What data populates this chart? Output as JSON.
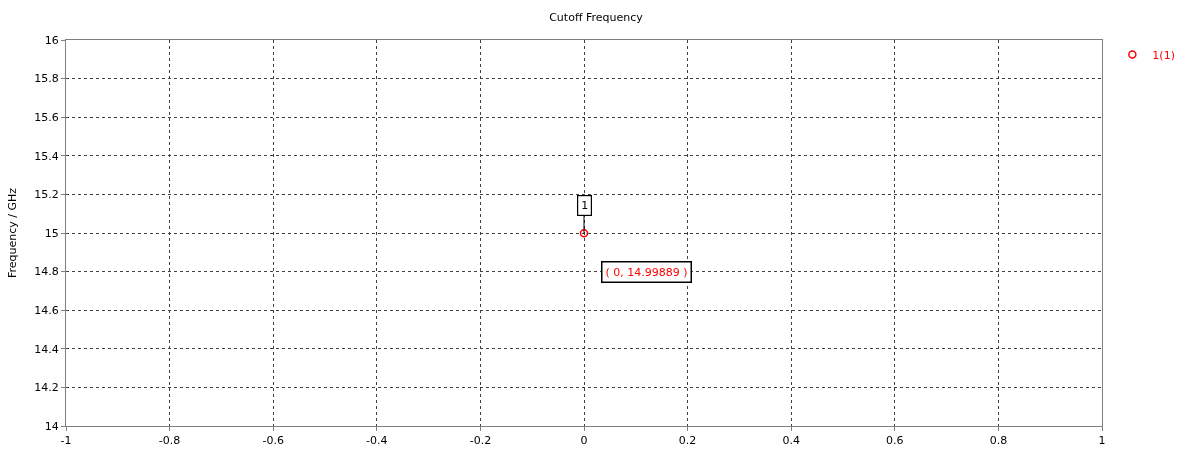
{
  "chart_data": {
    "type": "scatter",
    "title": "Cutoff Frequency",
    "ylabel": "Frequency / GHz",
    "series": [
      {
        "name": "1(1)",
        "color": "#ff0000",
        "x": [
          0
        ],
        "values": [
          14.99889
        ]
      }
    ],
    "xlim": [
      -1,
      1
    ],
    "xticks": [
      -1,
      -0.8,
      -0.6,
      -0.4,
      -0.2,
      0,
      0.2,
      0.4,
      0.6,
      0.8,
      1
    ],
    "ylim": [
      14,
      16
    ],
    "yticks": [
      14,
      14.2,
      14.4,
      14.6,
      14.8,
      15,
      15.2,
      15.4,
      15.6,
      15.8,
      16
    ],
    "grid": true,
    "legend": "top right",
    "marker": "circle",
    "annotations": [
      {
        "text": "1",
        "x": 0,
        "y": 14.99889
      },
      "( 0, 14.99889 )"
    ]
  }
}
